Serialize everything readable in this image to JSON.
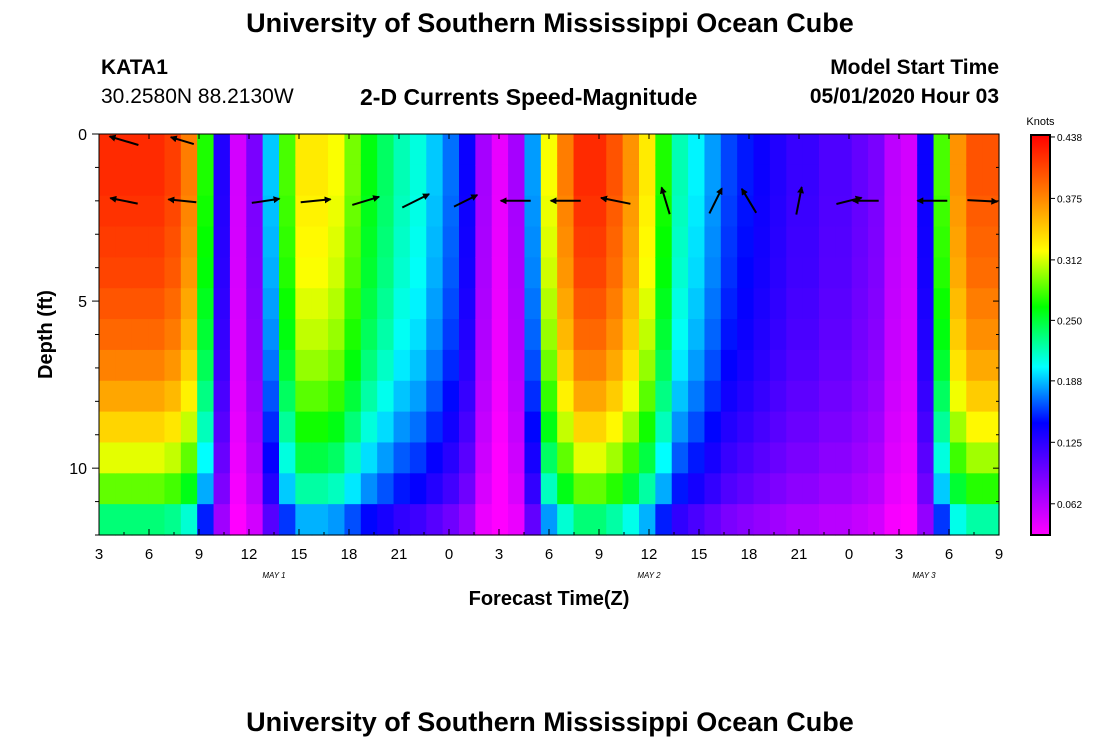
{
  "header": {
    "title": "University of Southern Mississippi Ocean Cube",
    "footer_title": "University of Southern Mississippi Ocean Cube",
    "station_id": "KATA1",
    "station_coords": "30.2580N 88.2130W",
    "plot_title": "2-D Currents Speed-Magnitude",
    "model_label": "Model Start Time",
    "model_time": "05/01/2020 Hour 03"
  },
  "chart_data": {
    "type": "heatmap",
    "title": "2-D Currents Speed-Magnitude",
    "xlabel": "Forecast Time(Z)",
    "ylabel": "Depth (ft)",
    "x_unit": "forecast hour since 05/01/2020 03Z",
    "xlim": [
      0,
      54
    ],
    "ylim": [
      0,
      12
    ],
    "y_inverted": true,
    "x_tick_labels": [
      "3",
      "6",
      "9",
      "12",
      "15",
      "18",
      "21",
      "0",
      "3",
      "6",
      "9",
      "12",
      "15",
      "18",
      "21",
      "0",
      "3",
      "6",
      "9"
    ],
    "date_labels": [
      {
        "label": "MAY 1",
        "x": 10.5
      },
      {
        "label": "MAY 2",
        "x": 33
      },
      {
        "label": "MAY 3",
        "x": 49.5
      }
    ],
    "y_ticks": [
      0,
      5,
      10
    ],
    "colorbar": {
      "label": "Knots",
      "min": 0.03,
      "max": 0.44,
      "ticks": [
        "0.438",
        "0.375",
        "0.312",
        "0.250",
        "0.188",
        "0.125",
        "0.062"
      ],
      "tick_values": [
        0.438,
        0.375,
        0.312,
        0.25,
        0.188,
        0.125,
        0.062
      ]
    },
    "time_hours": [
      0,
      1,
      2,
      3,
      4,
      5,
      6,
      7,
      8,
      9,
      10,
      11,
      12,
      13,
      14,
      15,
      16,
      17,
      18,
      19,
      20,
      21,
      22,
      23,
      24,
      25,
      26,
      27,
      28,
      29,
      30,
      31,
      32,
      33,
      34,
      35,
      36,
      37,
      38,
      39,
      40,
      41,
      42,
      43,
      44,
      45,
      46,
      47,
      48,
      49,
      50,
      51,
      52,
      53,
      54
    ],
    "depth_ft": [
      0,
      12
    ],
    "depth_levels_ft": [
      2,
      4,
      6,
      8,
      10
    ],
    "surface_speed_knots": [
      0.42,
      0.42,
      0.42,
      0.42,
      0.41,
      0.38,
      0.27,
      0.13,
      0.05,
      0.09,
      0.19,
      0.28,
      0.33,
      0.33,
      0.32,
      0.29,
      0.26,
      0.24,
      0.22,
      0.21,
      0.19,
      0.17,
      0.14,
      0.07,
      0.04,
      0.07,
      0.18,
      0.32,
      0.38,
      0.42,
      0.42,
      0.4,
      0.37,
      0.33,
      0.27,
      0.22,
      0.2,
      0.18,
      0.16,
      0.15,
      0.14,
      0.13,
      0.12,
      0.12,
      0.11,
      0.11,
      0.1,
      0.09,
      0.06,
      0.05,
      0.14,
      0.28,
      0.37,
      0.4,
      0.4
    ],
    "depth_factor": [
      1.0,
      1.0,
      0.99,
      0.98,
      0.97,
      0.95,
      0.93,
      0.9,
      0.86,
      0.81,
      0.75,
      0.68,
      0.56
    ],
    "arrows": [
      {
        "t": 1.5,
        "d": 0.2,
        "u": -1.0,
        "v": 0.3,
        "len": 30
      },
      {
        "t": 5,
        "d": 0.2,
        "u": -1.0,
        "v": 0.3,
        "len": 24
      },
      {
        "t": 1.5,
        "d": 2,
        "u": -1.0,
        "v": 0.2,
        "len": 28
      },
      {
        "t": 5,
        "d": 2,
        "u": -1.0,
        "v": 0.1,
        "len": 28
      },
      {
        "t": 10,
        "d": 2,
        "u": 1.0,
        "v": 0.15,
        "len": 28
      },
      {
        "t": 13,
        "d": 2,
        "u": 1.0,
        "v": 0.1,
        "len": 30
      },
      {
        "t": 16,
        "d": 2,
        "u": 1.0,
        "v": 0.3,
        "len": 28
      },
      {
        "t": 19,
        "d": 2,
        "u": 1.0,
        "v": 0.5,
        "len": 30
      },
      {
        "t": 22,
        "d": 2,
        "u": 1.0,
        "v": 0.5,
        "len": 26
      },
      {
        "t": 25,
        "d": 2,
        "u": -1.0,
        "v": 0.0,
        "len": 30
      },
      {
        "t": 28,
        "d": 2,
        "u": -1.0,
        "v": 0.0,
        "len": 30
      },
      {
        "t": 31,
        "d": 2,
        "u": -1.0,
        "v": 0.2,
        "len": 30
      },
      {
        "t": 34,
        "d": 2,
        "u": -0.3,
        "v": 1.0,
        "len": 28
      },
      {
        "t": 37,
        "d": 2,
        "u": 0.5,
        "v": 1.0,
        "len": 28
      },
      {
        "t": 39,
        "d": 2,
        "u": -0.6,
        "v": 1.0,
        "len": 28
      },
      {
        "t": 42,
        "d": 2,
        "u": 0.2,
        "v": 1.0,
        "len": 28
      },
      {
        "t": 45,
        "d": 2,
        "u": 1.0,
        "v": 0.25,
        "len": 26
      },
      {
        "t": 46,
        "d": 2,
        "u": -1.0,
        "v": 0.0,
        "len": 26
      },
      {
        "t": 50,
        "d": 2,
        "u": -1.0,
        "v": 0.0,
        "len": 30
      },
      {
        "t": 53,
        "d": 2,
        "u": 1.0,
        "v": -0.05,
        "len": 30
      }
    ]
  }
}
